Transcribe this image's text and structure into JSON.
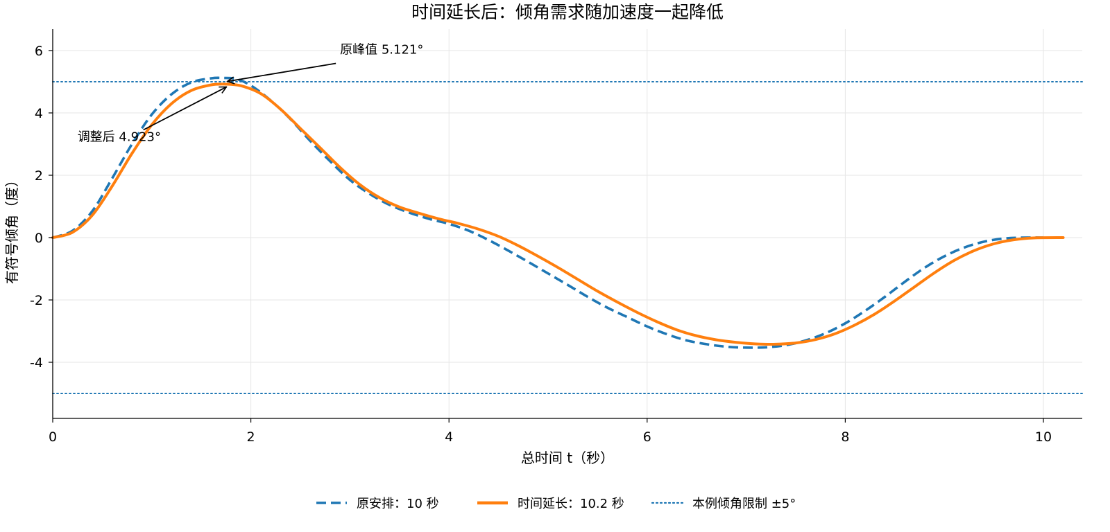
{
  "chart_data": {
    "type": "line",
    "title": "时间延长后：倾角需求随加速度一起降低",
    "xlabel": "总时间 t（秒）",
    "ylabel": "有符号倾角（度）",
    "xlim": [
      0,
      10.4
    ],
    "ylim": [
      -5.8,
      6.7
    ],
    "xticks": [
      0,
      2,
      4,
      6,
      8,
      10
    ],
    "yticks": [
      -4,
      -2,
      0,
      2,
      4,
      6
    ],
    "grid": true,
    "legend_position": "bottom-center",
    "series": [
      {
        "name": "原安排：10 秒",
        "style": "dashed",
        "color": "#1f77b4",
        "points": [
          [
            0,
            0
          ],
          [
            0.2,
            0.22
          ],
          [
            0.4,
            0.85
          ],
          [
            0.6,
            1.9
          ],
          [
            0.8,
            3.0
          ],
          [
            1.0,
            3.95
          ],
          [
            1.2,
            4.6
          ],
          [
            1.4,
            4.98
          ],
          [
            1.6,
            5.11
          ],
          [
            1.72,
            5.121
          ],
          [
            1.85,
            5.09
          ],
          [
            2.0,
            4.88
          ],
          [
            2.2,
            4.4
          ],
          [
            2.4,
            3.8
          ],
          [
            2.6,
            3.1
          ],
          [
            2.8,
            2.45
          ],
          [
            3.0,
            1.85
          ],
          [
            3.2,
            1.4
          ],
          [
            3.4,
            1.05
          ],
          [
            3.6,
            0.8
          ],
          [
            3.8,
            0.6
          ],
          [
            4.0,
            0.44
          ],
          [
            4.2,
            0.22
          ],
          [
            4.4,
            -0.08
          ],
          [
            4.6,
            -0.42
          ],
          [
            4.8,
            -0.78
          ],
          [
            5.0,
            -1.15
          ],
          [
            5.2,
            -1.52
          ],
          [
            5.4,
            -1.9
          ],
          [
            5.6,
            -2.25
          ],
          [
            5.8,
            -2.55
          ],
          [
            6.0,
            -2.85
          ],
          [
            6.2,
            -3.1
          ],
          [
            6.4,
            -3.3
          ],
          [
            6.6,
            -3.42
          ],
          [
            6.8,
            -3.5
          ],
          [
            7.0,
            -3.53
          ],
          [
            7.2,
            -3.52
          ],
          [
            7.4,
            -3.45
          ],
          [
            7.6,
            -3.3
          ],
          [
            7.8,
            -3.07
          ],
          [
            8.0,
            -2.75
          ],
          [
            8.2,
            -2.35
          ],
          [
            8.4,
            -1.9
          ],
          [
            8.6,
            -1.42
          ],
          [
            8.8,
            -0.97
          ],
          [
            9.0,
            -0.6
          ],
          [
            9.2,
            -0.32
          ],
          [
            9.4,
            -0.13
          ],
          [
            9.6,
            -0.03
          ],
          [
            9.8,
            0.0
          ],
          [
            10.0,
            0.0
          ]
        ]
      },
      {
        "name": "时间延长：10.2 秒",
        "style": "solid",
        "color": "#ff7f0e",
        "points": [
          [
            0,
            0
          ],
          [
            0.2,
            0.17
          ],
          [
            0.4,
            0.72
          ],
          [
            0.6,
            1.65
          ],
          [
            0.8,
            2.7
          ],
          [
            1.0,
            3.62
          ],
          [
            1.2,
            4.3
          ],
          [
            1.4,
            4.72
          ],
          [
            1.6,
            4.9
          ],
          [
            1.74,
            4.923
          ],
          [
            1.9,
            4.87
          ],
          [
            2.1,
            4.62
          ],
          [
            2.3,
            4.12
          ],
          [
            2.5,
            3.5
          ],
          [
            2.7,
            2.88
          ],
          [
            2.9,
            2.25
          ],
          [
            3.1,
            1.7
          ],
          [
            3.3,
            1.28
          ],
          [
            3.5,
            0.98
          ],
          [
            3.7,
            0.78
          ],
          [
            3.9,
            0.6
          ],
          [
            4.1,
            0.45
          ],
          [
            4.3,
            0.27
          ],
          [
            4.5,
            0.04
          ],
          [
            4.7,
            -0.26
          ],
          [
            4.9,
            -0.6
          ],
          [
            5.1,
            -0.96
          ],
          [
            5.3,
            -1.34
          ],
          [
            5.5,
            -1.72
          ],
          [
            5.7,
            -2.07
          ],
          [
            5.9,
            -2.4
          ],
          [
            6.1,
            -2.7
          ],
          [
            6.3,
            -2.96
          ],
          [
            6.5,
            -3.15
          ],
          [
            6.7,
            -3.28
          ],
          [
            6.9,
            -3.36
          ],
          [
            7.1,
            -3.41
          ],
          [
            7.3,
            -3.42
          ],
          [
            7.5,
            -3.38
          ],
          [
            7.7,
            -3.27
          ],
          [
            7.9,
            -3.08
          ],
          [
            8.1,
            -2.8
          ],
          [
            8.3,
            -2.45
          ],
          [
            8.5,
            -2.03
          ],
          [
            8.7,
            -1.58
          ],
          [
            8.9,
            -1.13
          ],
          [
            9.1,
            -0.73
          ],
          [
            9.3,
            -0.42
          ],
          [
            9.5,
            -0.2
          ],
          [
            9.7,
            -0.07
          ],
          [
            9.9,
            -0.01
          ],
          [
            10.2,
            0.0
          ]
        ]
      },
      {
        "name": "本例倾角限制 ±5°",
        "style": "dotted",
        "color": "#1f77b4",
        "hlines": [
          5,
          -5
        ]
      }
    ],
    "annotations": [
      {
        "text": "原峰值 5.121°",
        "point": [
          1.72,
          5.121
        ],
        "text_at": [
          2.9,
          5.9
        ],
        "color": "#000000"
      },
      {
        "text": "调整后 4.923°",
        "point": [
          1.74,
          4.923
        ],
        "text_at": [
          0.25,
          3.1
        ],
        "color": "#000000"
      }
    ]
  }
}
